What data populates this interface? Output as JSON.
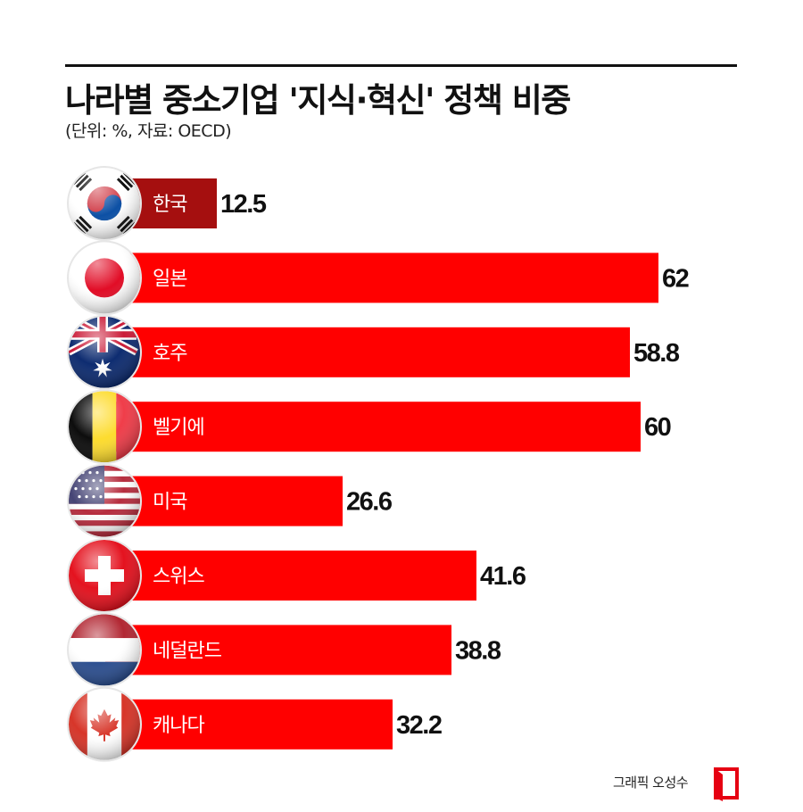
{
  "header": {
    "title": "나라별 중소기업 '지식·혁신' 정책 비중",
    "subtitle": "(단위: %, 자료: OECD)"
  },
  "chart_data": {
    "type": "bar",
    "orientation": "horizontal",
    "title": "나라별 중소기업 '지식·혁신' 정책 비중",
    "subtitle": "(단위: %, 자료: OECD)",
    "categories": [
      "한국",
      "일본",
      "호주",
      "벨기에",
      "미국",
      "스위스",
      "네덜란드",
      "캐나다"
    ],
    "values": [
      12.5,
      62,
      58.8,
      60,
      26.6,
      41.6,
      38.8,
      32.2
    ],
    "value_labels": [
      "12.5",
      "62",
      "58.8",
      "60",
      "26.6",
      "41.6",
      "38.8",
      "32.2"
    ],
    "flags": [
      "south-korea-flag-icon",
      "japan-flag-icon",
      "australia-flag-icon",
      "belgium-flag-icon",
      "usa-flag-icon",
      "switzerland-flag-icon",
      "netherlands-flag-icon",
      "canada-flag-icon"
    ],
    "highlight_index": 0,
    "colors": {
      "bar": "#ff0000",
      "highlight_bar": "#a50f0f"
    },
    "legend": "none",
    "grid": false
  },
  "footer": {
    "credit": "그래픽 오성수",
    "logo_icon": "newspaper-logo-icon"
  }
}
